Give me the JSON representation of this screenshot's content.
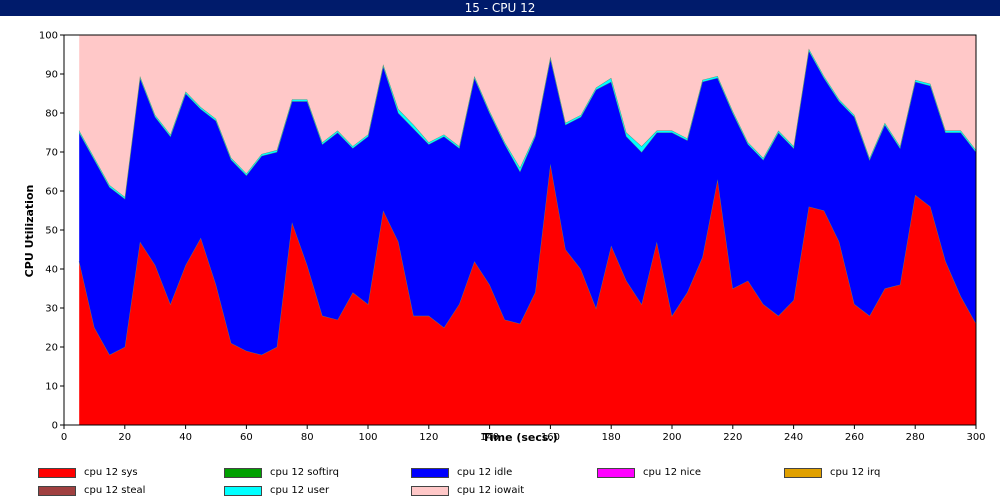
{
  "window": {
    "title": "15 - CPU 12"
  },
  "chart_data": {
    "type": "area",
    "stacked": true,
    "xlabel": "Time (secs.)",
    "ylabel": "CPU Utilization",
    "xlim": [
      0,
      300
    ],
    "ylim": [
      0,
      100
    ],
    "xticks": [
      0,
      20,
      40,
      60,
      80,
      100,
      120,
      140,
      160,
      180,
      200,
      220,
      240,
      260,
      280,
      300
    ],
    "yticks": [
      0,
      10,
      20,
      30,
      40,
      50,
      60,
      70,
      80,
      90,
      100
    ],
    "grid": false,
    "legend_position": "bottom",
    "x": [
      5,
      10,
      15,
      20,
      25,
      30,
      35,
      40,
      45,
      50,
      55,
      60,
      65,
      70,
      75,
      80,
      85,
      90,
      95,
      100,
      105,
      110,
      115,
      120,
      125,
      130,
      135,
      140,
      145,
      150,
      155,
      160,
      165,
      170,
      175,
      180,
      185,
      190,
      195,
      200,
      205,
      210,
      215,
      220,
      225,
      230,
      235,
      240,
      245,
      250,
      255,
      260,
      265,
      270,
      275,
      280,
      285,
      290,
      295,
      300
    ],
    "series": [
      {
        "name": "cpu 12 sys",
        "color": "#ff0000",
        "values": [
          42,
          25,
          18,
          20,
          47,
          41,
          31,
          41,
          48,
          36,
          21,
          19,
          18,
          20,
          52,
          41,
          28,
          27,
          34,
          31,
          55,
          47,
          28,
          28,
          25,
          31,
          42,
          36,
          27,
          26,
          34,
          67,
          45,
          40,
          30,
          46,
          37,
          31,
          47,
          28,
          34,
          43,
          63,
          35,
          37,
          31,
          28,
          32,
          56,
          55,
          47,
          31,
          28,
          35,
          36,
          59,
          56,
          42,
          33,
          26
        ]
      },
      {
        "name": "cpu 12 softirq",
        "color": "#00a000",
        "values": [
          0,
          0,
          0,
          0,
          0,
          0,
          0,
          0,
          0,
          0,
          0,
          0,
          0,
          0,
          0,
          0,
          0,
          0,
          0,
          0,
          0,
          0,
          0,
          0,
          0,
          0,
          0,
          0,
          0,
          0,
          0,
          0,
          0,
          0,
          0,
          0,
          0,
          0,
          0,
          0,
          0,
          0,
          0,
          0,
          0,
          0,
          0,
          0,
          0,
          0,
          0,
          0,
          0,
          0,
          0,
          0,
          0,
          0,
          0,
          0
        ]
      },
      {
        "name": "cpu 12 idle",
        "color": "#0000ff",
        "values": [
          33,
          43,
          43,
          38,
          42,
          38,
          43,
          44,
          33,
          42,
          47,
          45,
          51,
          50,
          31,
          42,
          44,
          48,
          37,
          43,
          37,
          33,
          48,
          44,
          49,
          40,
          47,
          44,
          45,
          39,
          40,
          27,
          32,
          39,
          56,
          42,
          37,
          39,
          28,
          47,
          39,
          45,
          26,
          45,
          35,
          37,
          47,
          39,
          40,
          34,
          36,
          48,
          40,
          42,
          35,
          29,
          31,
          33,
          42,
          44
        ]
      },
      {
        "name": "cpu 12 nice",
        "color": "#ff00ff",
        "values": [
          0,
          0,
          0,
          0,
          0,
          0,
          0,
          0,
          0,
          0,
          0,
          0,
          0,
          0,
          0,
          0,
          0,
          0,
          0,
          0,
          0,
          0,
          0,
          0,
          0,
          0,
          0,
          0,
          0,
          0,
          0,
          0,
          0,
          0,
          0,
          0,
          0,
          0,
          0,
          0,
          0,
          0,
          0,
          0,
          0,
          0,
          0,
          0,
          0,
          0,
          0,
          0,
          0,
          0,
          0,
          0,
          0,
          0,
          0,
          0
        ]
      },
      {
        "name": "cpu 12 irq",
        "color": "#e0a000",
        "values": [
          0,
          0,
          0,
          0,
          0,
          0,
          0,
          0,
          0,
          0,
          0,
          0,
          0,
          0,
          0,
          0,
          0,
          0,
          0,
          0,
          0,
          0,
          0,
          0,
          0,
          0,
          0,
          0,
          0,
          0,
          0,
          0,
          0,
          0,
          0,
          0,
          0,
          0,
          0,
          0,
          0,
          0,
          0,
          0,
          0,
          0,
          0,
          0,
          0,
          0,
          0,
          0,
          0,
          0,
          0,
          0,
          0,
          0,
          0,
          0
        ]
      },
      {
        "name": "cpu 12 steal",
        "color": "#a04040",
        "values": [
          0,
          0,
          0,
          0,
          0,
          0,
          0,
          0,
          0,
          0,
          0,
          0,
          0,
          0,
          0,
          0,
          0,
          0,
          0,
          0,
          0,
          0,
          0,
          0,
          0,
          0,
          0,
          0,
          0,
          0,
          0,
          0,
          0,
          0,
          0,
          0,
          0,
          0,
          0,
          0,
          0,
          0,
          0,
          0,
          0,
          0,
          0,
          0,
          0,
          0,
          0,
          0,
          0,
          0,
          0,
          0,
          0,
          0,
          0,
          0
        ]
      },
      {
        "name": "cpu 12 user",
        "color": "#00ffff",
        "values": [
          0.5,
          0.5,
          0.5,
          0.5,
          0.5,
          0.5,
          0.5,
          0.5,
          0.5,
          0.5,
          0.5,
          0.5,
          0.5,
          0.5,
          0.5,
          0.5,
          0.5,
          0.5,
          0.5,
          0.5,
          0.5,
          1,
          1,
          0.5,
          0.5,
          0.5,
          0.5,
          0.5,
          0.5,
          1,
          0.5,
          0.5,
          0.5,
          0.5,
          0.5,
          1,
          1,
          1.5,
          0.5,
          0.5,
          0.5,
          0.5,
          0.5,
          0.5,
          0.5,
          0.5,
          0.5,
          0.5,
          0.5,
          0.5,
          0.5,
          0.5,
          0.5,
          0.5,
          0.5,
          0.5,
          0.5,
          0.5,
          0.5,
          0.5
        ]
      },
      {
        "name": "cpu 12 iowait",
        "color": "#ffc8c8",
        "values": [
          24.5,
          31.5,
          38.5,
          41.5,
          10.5,
          20.5,
          25.5,
          14.5,
          18.5,
          21.5,
          31.5,
          35.5,
          30.5,
          29.5,
          16.5,
          16.5,
          27.5,
          24.5,
          28.5,
          25.5,
          7.5,
          19,
          23,
          27.5,
          25.5,
          28.5,
          10.5,
          19.5,
          27.5,
          34,
          25.5,
          5.5,
          22.5,
          20.5,
          13.5,
          11,
          25,
          28.5,
          24.5,
          24.5,
          26.5,
          11.5,
          10.5,
          19.5,
          27.5,
          31.5,
          24.5,
          28.5,
          3.5,
          10.5,
          16.5,
          20.5,
          31.5,
          22.5,
          28.5,
          11.5,
          12.5,
          24.5,
          24.5,
          29.5
        ]
      }
    ]
  }
}
